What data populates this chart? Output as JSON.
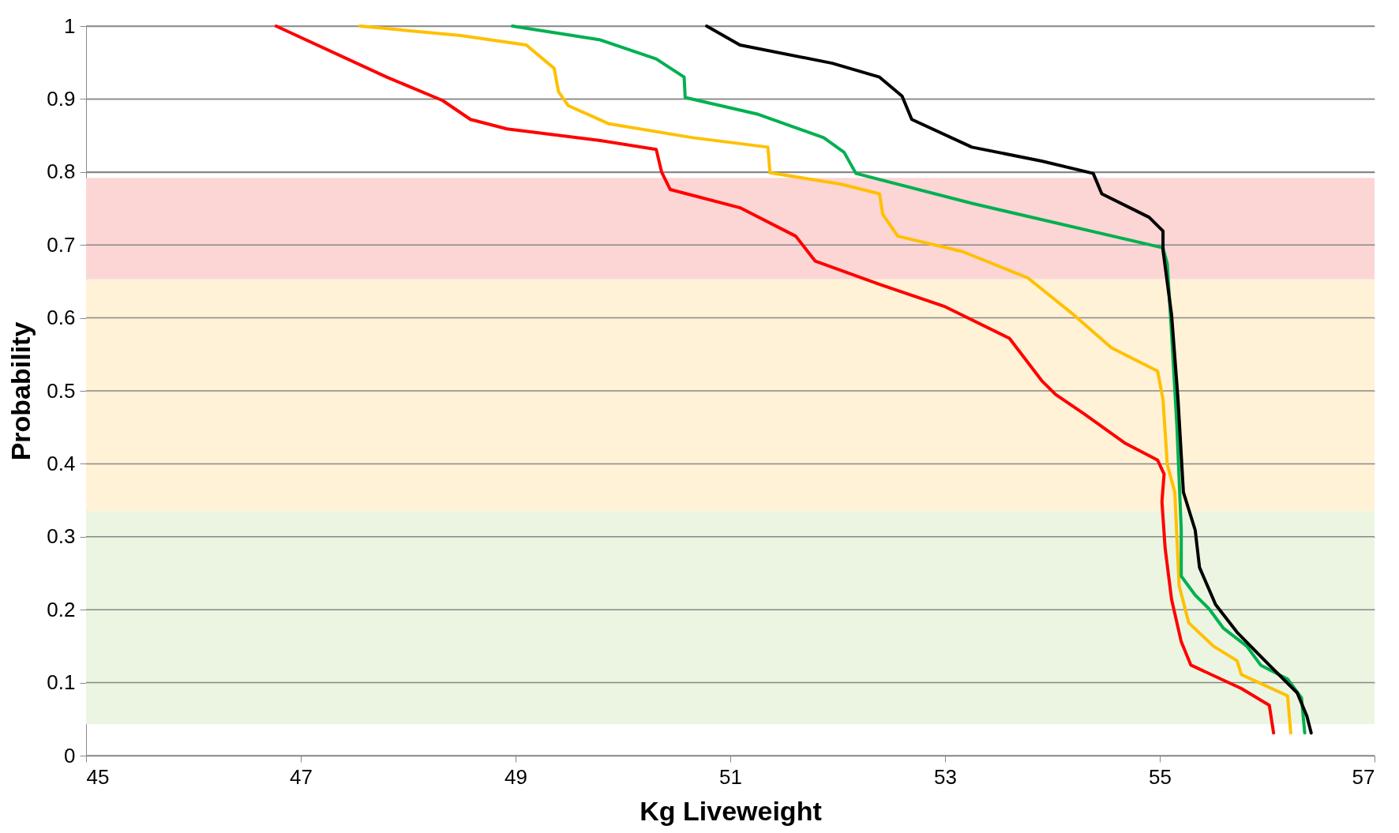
{
  "chart_data": {
    "type": "line",
    "xlabel": "Kg Liveweight",
    "ylabel": "Probability",
    "xlim": [
      45,
      57
    ],
    "xticks": [
      45,
      47,
      49,
      51,
      53,
      55,
      57
    ],
    "ylim": [
      0,
      1
    ],
    "yticks": [
      0,
      {
        "value": 0.1,
        "label": "0.1"
      },
      {
        "value": 0.2,
        "label": "0.2"
      },
      {
        "value": 0.3,
        "label": "0.3"
      },
      {
        "value": 0.4,
        "label": "0.4"
      },
      {
        "value": 0.5,
        "label": "0.5"
      },
      {
        "value": 0.6,
        "label": "0.6"
      },
      {
        "value": 0.7,
        "label": "0.7"
      },
      {
        "value": 0.8,
        "label": "0.8"
      },
      {
        "value": 0.9,
        "label": "0.9"
      },
      1
    ],
    "grid": "y",
    "legend": false,
    "line_style": "solid",
    "marker": "none",
    "bands": [
      {
        "axis": "y",
        "from": 0.653,
        "to": 0.792,
        "color": "#fcd5d5"
      },
      {
        "axis": "y",
        "from": 0.335,
        "to": 0.653,
        "color": "#fff2d6"
      },
      {
        "axis": "y",
        "from": 0.043,
        "to": 0.335,
        "color": "#ebf5e1"
      }
    ],
    "series": [
      {
        "color": "#ff0000",
        "x": [
          46.77,
          47.8,
          48.32,
          48.58,
          48.92,
          49.79,
          50.31,
          50.36,
          50.44,
          51.09,
          51.61,
          51.79,
          52.39,
          52.99,
          53.6,
          53.9,
          54.03,
          54.29,
          54.68,
          54.98,
          55.04,
          55.02,
          55.05,
          55.11,
          55.2,
          55.29,
          55.76,
          56.02,
          56.06
        ],
        "values": [
          1.0,
          0.93,
          0.898,
          0.872,
          0.859,
          0.843,
          0.831,
          0.8,
          0.776,
          0.751,
          0.712,
          0.678,
          0.646,
          0.616,
          0.572,
          0.514,
          0.495,
          0.469,
          0.428,
          0.405,
          0.386,
          0.348,
          0.284,
          0.214,
          0.156,
          0.124,
          0.092,
          0.069,
          0.031
        ]
      },
      {
        "color": "#ffc000",
        "x": [
          47.55,
          48.49,
          49.1,
          49.36,
          49.4,
          49.49,
          49.87,
          50.65,
          51.35,
          51.37,
          52.04,
          52.39,
          52.42,
          52.56,
          53.16,
          53.77,
          54.2,
          54.55,
          54.98,
          55.03,
          55.07,
          55.14,
          55.18,
          55.27,
          55.5,
          55.72,
          55.76,
          56.19,
          56.22
        ],
        "values": [
          1.0,
          0.987,
          0.974,
          0.942,
          0.91,
          0.891,
          0.866,
          0.847,
          0.834,
          0.799,
          0.783,
          0.77,
          0.742,
          0.712,
          0.691,
          0.655,
          0.604,
          0.559,
          0.527,
          0.488,
          0.399,
          0.361,
          0.233,
          0.182,
          0.15,
          0.13,
          0.111,
          0.082,
          0.031
        ]
      },
      {
        "color": "#00b050",
        "x": [
          48.97,
          49.79,
          50.31,
          50.57,
          50.58,
          51.26,
          51.87,
          52.06,
          52.17,
          53.25,
          55.03,
          55.07,
          55.11,
          55.16,
          55.2,
          55.2,
          55.33,
          55.46,
          55.59,
          55.81,
          55.94,
          56.19,
          56.32,
          56.35
        ],
        "values": [
          1.0,
          0.981,
          0.955,
          0.93,
          0.902,
          0.879,
          0.847,
          0.827,
          0.798,
          0.757,
          0.696,
          0.674,
          0.578,
          0.45,
          0.309,
          0.246,
          0.22,
          0.201,
          0.175,
          0.15,
          0.124,
          0.105,
          0.079,
          0.031
        ]
      },
      {
        "color": "#000000",
        "x": [
          50.78,
          51.09,
          51.95,
          52.39,
          52.6,
          52.69,
          53.25,
          53.9,
          54.38,
          54.46,
          54.9,
          55.03,
          55.03,
          55.11,
          55.17,
          55.22,
          55.33,
          55.37,
          55.52,
          55.72,
          56.02,
          56.28,
          56.37,
          56.41
        ],
        "values": [
          1.0,
          0.974,
          0.949,
          0.93,
          0.904,
          0.872,
          0.834,
          0.815,
          0.798,
          0.77,
          0.738,
          0.719,
          0.693,
          0.604,
          0.488,
          0.361,
          0.309,
          0.258,
          0.207,
          0.169,
          0.124,
          0.086,
          0.054,
          0.031
        ]
      }
    ]
  }
}
